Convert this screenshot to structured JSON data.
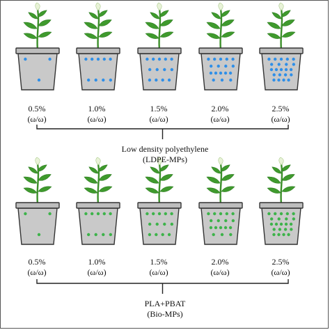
{
  "figure": {
    "groups": [
      {
        "title": "Low density polyethylene",
        "subtitle": "(LDPE-MPs)",
        "particle_color": "#2f8fe8",
        "treatments": [
          {
            "percent": "0.5%",
            "unit": "(ω/ω)"
          },
          {
            "percent": "1.0%",
            "unit": "(ω/ω)"
          },
          {
            "percent": "1.5%",
            "unit": "(ω/ω)"
          },
          {
            "percent": "2.0%",
            "unit": "(ω/ω)"
          },
          {
            "percent": "2.5%",
            "unit": "(ω/ω)"
          }
        ]
      },
      {
        "title": "PLA+PBAT",
        "subtitle": "(Bio-MPs)",
        "particle_color": "#3db34a",
        "treatments": [
          {
            "percent": "0.5%",
            "unit": "(ω/ω)"
          },
          {
            "percent": "1.0%",
            "unit": "(ω/ω)"
          },
          {
            "percent": "1.5%",
            "unit": "(ω/ω)"
          },
          {
            "percent": "2.0%",
            "unit": "(ω/ω)"
          },
          {
            "percent": "2.5%",
            "unit": "(ω/ω)"
          }
        ]
      }
    ],
    "colors": {
      "pot_body": "#c9c9c9",
      "pot_rim": "#bdbdbd",
      "pot_outline": "#333333",
      "leaf": "#3f9a2d",
      "leaf_dark": "#2f7d22",
      "stem": "#3c8f2a",
      "bud": "#e9f3d8"
    }
  }
}
